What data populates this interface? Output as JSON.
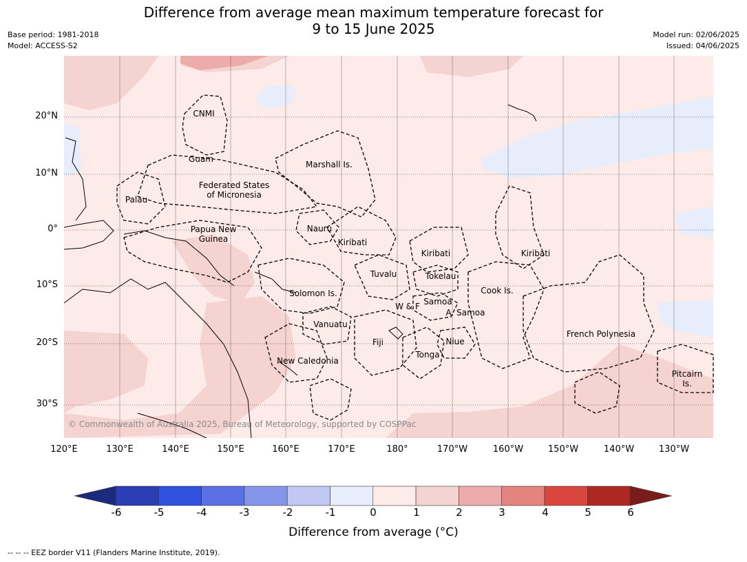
{
  "header": {
    "title_line1": "Difference from average mean maximum temperature forecast for",
    "title_line2": "9 to 15 June 2025",
    "base_period": "Base period: 1981-2018",
    "model": "Model: ACCESS-S2",
    "model_run": "Model run: 02/06/2025",
    "issued": "Issued: 04/06/2025"
  },
  "map": {
    "lat_ticks": [
      "20°N",
      "10°N",
      "0°",
      "10°S",
      "20°S",
      "30°S"
    ],
    "lon_ticks": [
      "120°E",
      "130°E",
      "140°E",
      "150°E",
      "160°E",
      "170°E",
      "180°",
      "170°W",
      "160°W",
      "150°W",
      "140°W",
      "130°W"
    ],
    "regions": [
      "CNMI",
      "Guam",
      "Marshall Is.",
      "Federated States\nof Micronesia",
      "Palau",
      "Papua New\nGuinea",
      "Nauru",
      "Kiribati",
      "Kiribati",
      "Kiribati",
      "Tuvalu",
      "Tokelau",
      "Solomon Is.",
      "Cook Is.",
      "Samoa",
      "W & F",
      "A. Samoa",
      "Vanuatu",
      "Fiji",
      "Niue",
      "Tonga",
      "New Caledonia",
      "French Polynesia",
      "Pitcairn\nIs."
    ],
    "copyright": "© Commonwealth of Australia 2025, Bureau of Meteorology, supported by COSPPac",
    "colors": {
      "ocean_background": "#fcebe9",
      "band_1_2": "#f5d3d0",
      "band_2_3": "#ecadaa",
      "band_0_neg1": "#e8edfb",
      "band_neg1_neg2": "#c1c8f2"
    }
  },
  "colorbar": {
    "label": "Difference from average (°C)",
    "ticks": [
      "-6",
      "-5",
      "-4",
      "-3",
      "-2",
      "-1",
      "0",
      "1",
      "2",
      "3",
      "4",
      "5",
      "6"
    ],
    "colors": [
      "#1c2a7b",
      "#2a3db5",
      "#3050df",
      "#5a70e4",
      "#8595ea",
      "#c1c8f2",
      "#e8edfb",
      "#fcebe9",
      "#f5d3d0",
      "#ecadaa",
      "#e5837d",
      "#d8463f",
      "#ad2820",
      "#7a1c19"
    ]
  },
  "footnote": "--  --  -- EEZ border V11 (Flanders Marine Institute, 2019)."
}
